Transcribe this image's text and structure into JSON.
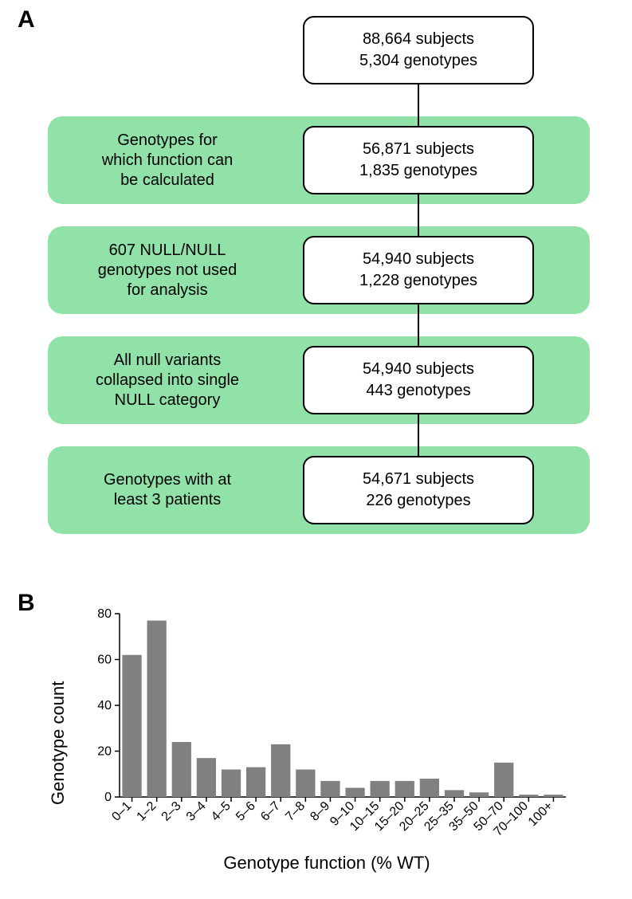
{
  "panelA": {
    "label": "A",
    "band_color": "#90e2a9",
    "box_border_color": "#000000",
    "box_bg_color": "#ffffff",
    "line_color": "#000000",
    "font_size_box": 20,
    "font_size_label": 20,
    "nodes": [
      {
        "line1": "88,664 subjects",
        "line2": "5,304 genotypes"
      },
      {
        "line1": "56,871 subjects",
        "line2": "1,835 genotypes"
      },
      {
        "line1": "54,940 subjects",
        "line2": "1,228 genotypes"
      },
      {
        "line1": "54,940 subjects",
        "line2": "443 genotypes"
      },
      {
        "line1": "54,671 subjects",
        "line2": "226 genotypes"
      }
    ],
    "bands": [
      {
        "label": "Genotypes for\nwhich function can\nbe calculated"
      },
      {
        "label": "607 NULL/NULL\ngenotypes not used\nfor analysis"
      },
      {
        "label": "All null variants\ncollapsed into single\nNULL category"
      },
      {
        "label": "Genotypes with at\nleast 3 patients"
      }
    ]
  },
  "panelB": {
    "label": "B",
    "type": "bar",
    "bar_color": "#808080",
    "axis_color": "#000000",
    "background_color": "#ffffff",
    "tick_fontsize": 16,
    "axis_title_fontsize": 22,
    "y_title": "Genotype count",
    "x_title": "Genotype function (% WT)",
    "ylim": [
      0,
      80
    ],
    "ytick_step": 20,
    "bar_width": 0.78,
    "categories": [
      "0–1",
      "1–2",
      "2–3",
      "3–4",
      "4–5",
      "5–6",
      "6–7",
      "7–8",
      "8–9",
      "9–10",
      "10–15",
      "15–20",
      "20–25",
      "25–35",
      "35–50",
      "50–70",
      "70–100",
      "100+"
    ],
    "values": [
      62,
      77,
      24,
      17,
      12,
      13,
      23,
      12,
      7,
      4,
      7,
      7,
      8,
      3,
      2,
      15,
      1,
      1
    ]
  }
}
